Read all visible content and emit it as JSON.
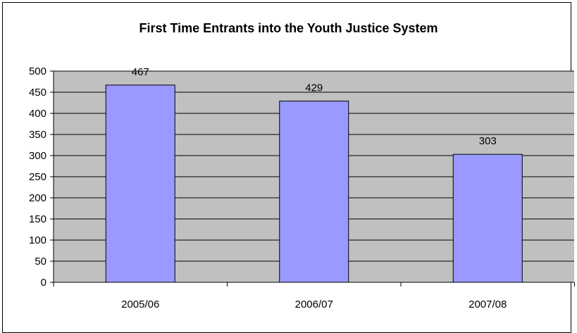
{
  "chart_data": {
    "type": "bar",
    "title": "First Time Entrants into the Youth  Justice System",
    "categories": [
      "2005/06",
      "2006/07",
      "2007/08"
    ],
    "values": [
      467,
      429,
      303
    ],
    "data_labels": [
      "467",
      "429",
      "303"
    ],
    "y_ticks": [
      "0",
      "50",
      "100",
      "150",
      "200",
      "250",
      "300",
      "350",
      "400",
      "450",
      "500"
    ],
    "ylim": [
      0,
      500
    ],
    "xlabel": "",
    "ylabel": "",
    "grid": true,
    "legend": "none",
    "colors": {
      "plot_background": "#c0c0c0",
      "bar_fill": "#9999ff",
      "bar_stroke": "#000000",
      "gridline": "#000000"
    }
  }
}
